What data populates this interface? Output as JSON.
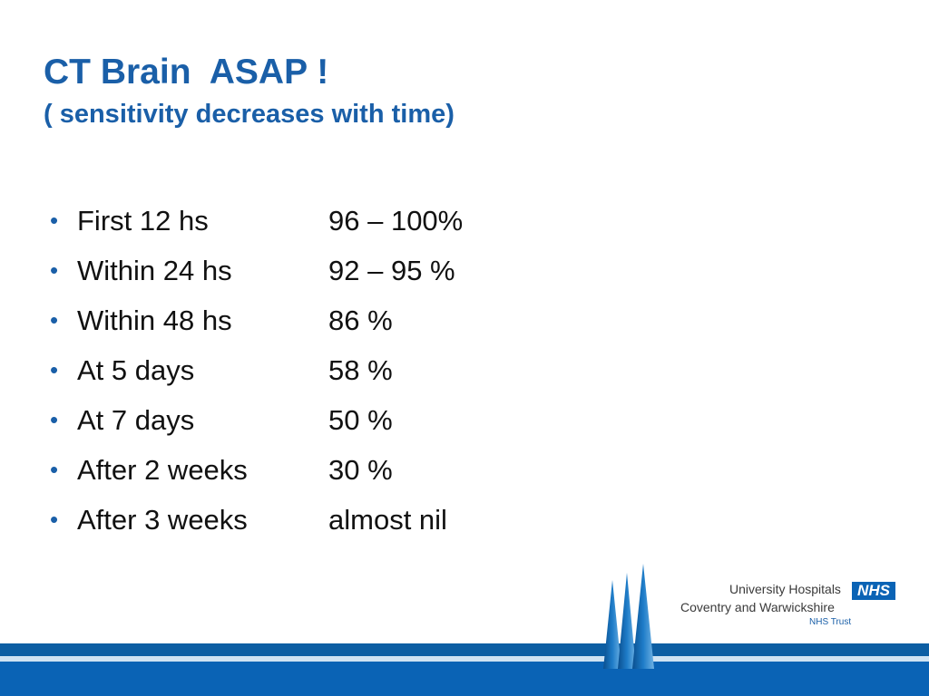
{
  "slide": {
    "title": "CT Brain  ASAP !",
    "subtitle": "( sensitivity decreases with time)",
    "bullet_symbol": "•",
    "items": [
      {
        "label": "First 12 hs",
        "value": "96 – 100%"
      },
      {
        "label": "Within 24 hs",
        "value": "92 – 95 %"
      },
      {
        "label": "Within 48 hs",
        "value": "86 %"
      },
      {
        "label": "At 5 days",
        "value": "58 %"
      },
      {
        "label": "At 7 days",
        "value": "50 %"
      },
      {
        "label": "After 2 weeks",
        "value": "30 %"
      },
      {
        "label": "After 3 weeks",
        "value": "almost nil"
      }
    ]
  },
  "logo": {
    "line1": "University Hospitals",
    "badge": "NHS",
    "line2": "Coventry and Warwickshire",
    "line3": "NHS Trust"
  },
  "colors": {
    "title": "#1a5fa8",
    "text": "#111111",
    "footer_band": "#0a63b5",
    "nhs_blue": "#0a63b5"
  },
  "icons": {
    "spires": "cathedral-spires-icon"
  }
}
